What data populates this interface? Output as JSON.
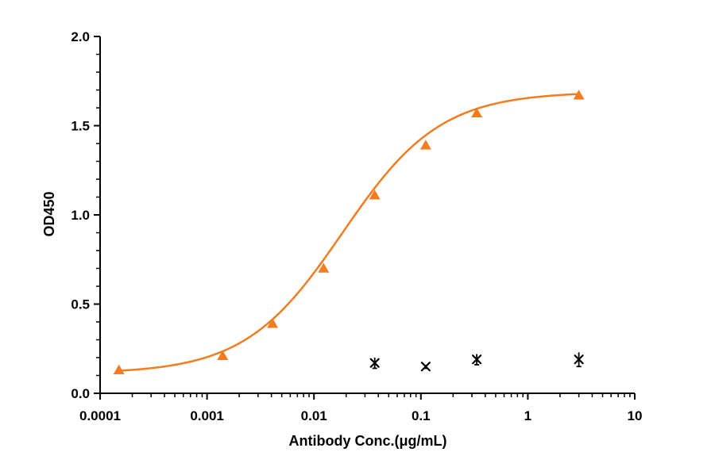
{
  "chart_data": {
    "type": "scatter",
    "xlabel": "Antibody Conc.(μg/mL)",
    "ylabel": "OD450",
    "xscale": "log",
    "xlim": [
      0.0001,
      10
    ],
    "ylim": [
      0,
      2.0
    ],
    "x_ticks": [
      "0.0001",
      "0.001",
      "0.01",
      "0.1",
      "1",
      "10"
    ],
    "y_ticks": [
      "0.0",
      "0.5",
      "1.0",
      "1.5",
      "2.0"
    ],
    "grid": false,
    "legend": "none",
    "series": [
      {
        "marker": "triangle",
        "color": "#f47c20",
        "fit": "4PL",
        "points": [
          {
            "x": 0.00015,
            "y": 0.13
          },
          {
            "x": 0.0014,
            "y": 0.21
          },
          {
            "x": 0.0041,
            "y": 0.39
          },
          {
            "x": 0.0123,
            "y": 0.7
          },
          {
            "x": 0.037,
            "y": 1.11
          },
          {
            "x": 0.111,
            "y": 1.39
          },
          {
            "x": 0.333,
            "y": 1.57
          },
          {
            "x": 3.0,
            "y": 1.67
          }
        ]
      },
      {
        "marker": "cross",
        "color": "#000000",
        "points": [
          {
            "x": 0.037,
            "y": 0.17,
            "err": 0.03
          },
          {
            "x": 0.111,
            "y": 0.15,
            "err": 0.01
          },
          {
            "x": 0.333,
            "y": 0.19,
            "err": 0.03
          },
          {
            "x": 3.0,
            "y": 0.19,
            "err": 0.04
          }
        ]
      }
    ]
  }
}
